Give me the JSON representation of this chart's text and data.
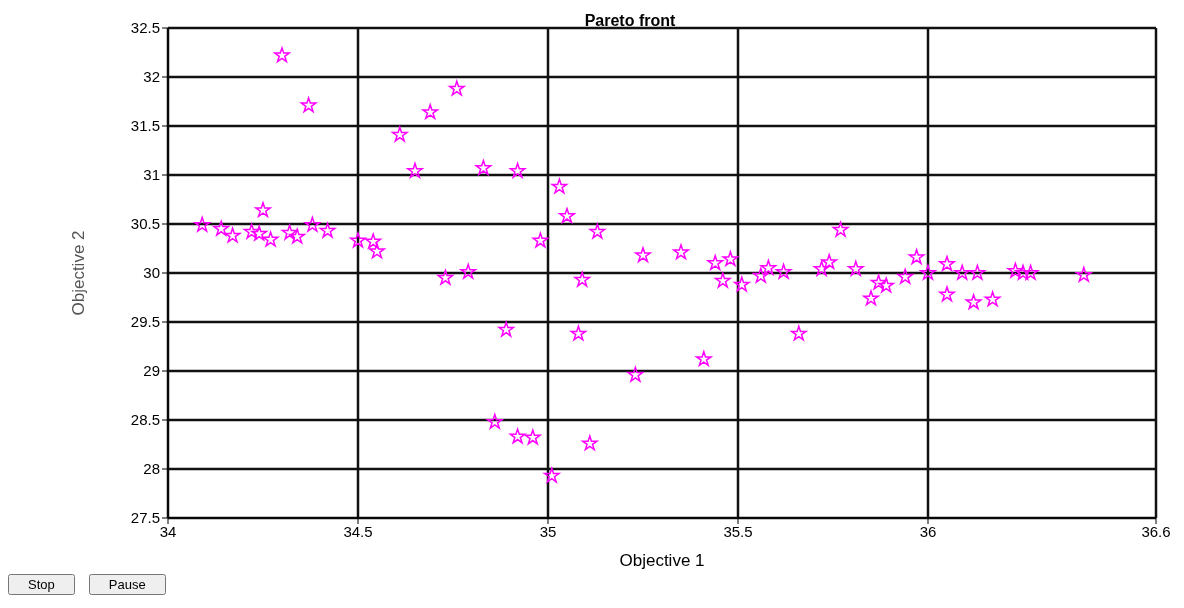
{
  "chart_data": {
    "type": "scatter",
    "title": "Pareto front",
    "xlabel": "Objective 1",
    "ylabel": "Objective 2",
    "xlim": [
      34,
      36.6
    ],
    "xticks": [
      34,
      34.5,
      35,
      35.5,
      36,
      36.6
    ],
    "ylim": [
      27.5,
      32.5
    ],
    "yticks": [
      27.5,
      28,
      28.5,
      29,
      29.5,
      30,
      30.5,
      31,
      31.5,
      32,
      32.5
    ],
    "grid": true,
    "marker": "star",
    "annotations": [
      "Stop",
      "Pause"
    ],
    "series": [
      {
        "color": "#ff00ff",
        "x": [
          34.09,
          34.14,
          34.17,
          34.22,
          34.25,
          34.24,
          34.27,
          34.32,
          34.34,
          34.38,
          34.42,
          34.3,
          34.37,
          34.5,
          34.54,
          34.55,
          34.61,
          34.69,
          34.76,
          34.65,
          34.83,
          34.92,
          35.03,
          35.05,
          35.13,
          34.98,
          34.73,
          34.79,
          34.89,
          34.86,
          34.92,
          34.96,
          35.01,
          35.11,
          35.08,
          35.09,
          35.23,
          35.25,
          35.35,
          35.41,
          35.44,
          35.48,
          35.46,
          35.51,
          35.56,
          35.58,
          35.62,
          35.66,
          35.72,
          35.74,
          35.77,
          35.81,
          35.85,
          35.87,
          35.89,
          35.94,
          35.97,
          36.0,
          36.05,
          36.05,
          36.09,
          36.13,
          36.12,
          36.17,
          36.23,
          36.25,
          36.27,
          36.41
        ],
        "values": [
          30.49,
          30.45,
          30.38,
          30.42,
          30.64,
          30.4,
          30.34,
          30.41,
          30.37,
          30.49,
          30.43,
          32.22,
          31.71,
          30.33,
          30.32,
          30.22,
          31.41,
          31.64,
          31.88,
          31.04,
          31.07,
          31.04,
          30.88,
          30.58,
          30.42,
          30.33,
          29.95,
          30.01,
          29.42,
          28.48,
          28.33,
          28.32,
          27.93,
          28.26,
          29.38,
          29.93,
          28.96,
          30.18,
          30.21,
          29.12,
          30.1,
          30.14,
          29.92,
          29.88,
          29.97,
          30.05,
          30.01,
          29.38,
          30.04,
          30.11,
          30.44,
          30.04,
          29.74,
          29.9,
          29.87,
          29.96,
          30.16,
          30.0,
          30.09,
          29.78,
          30.0,
          30.0,
          29.7,
          29.73,
          30.02,
          30.0,
          30.0,
          29.98
        ]
      }
    ]
  }
}
